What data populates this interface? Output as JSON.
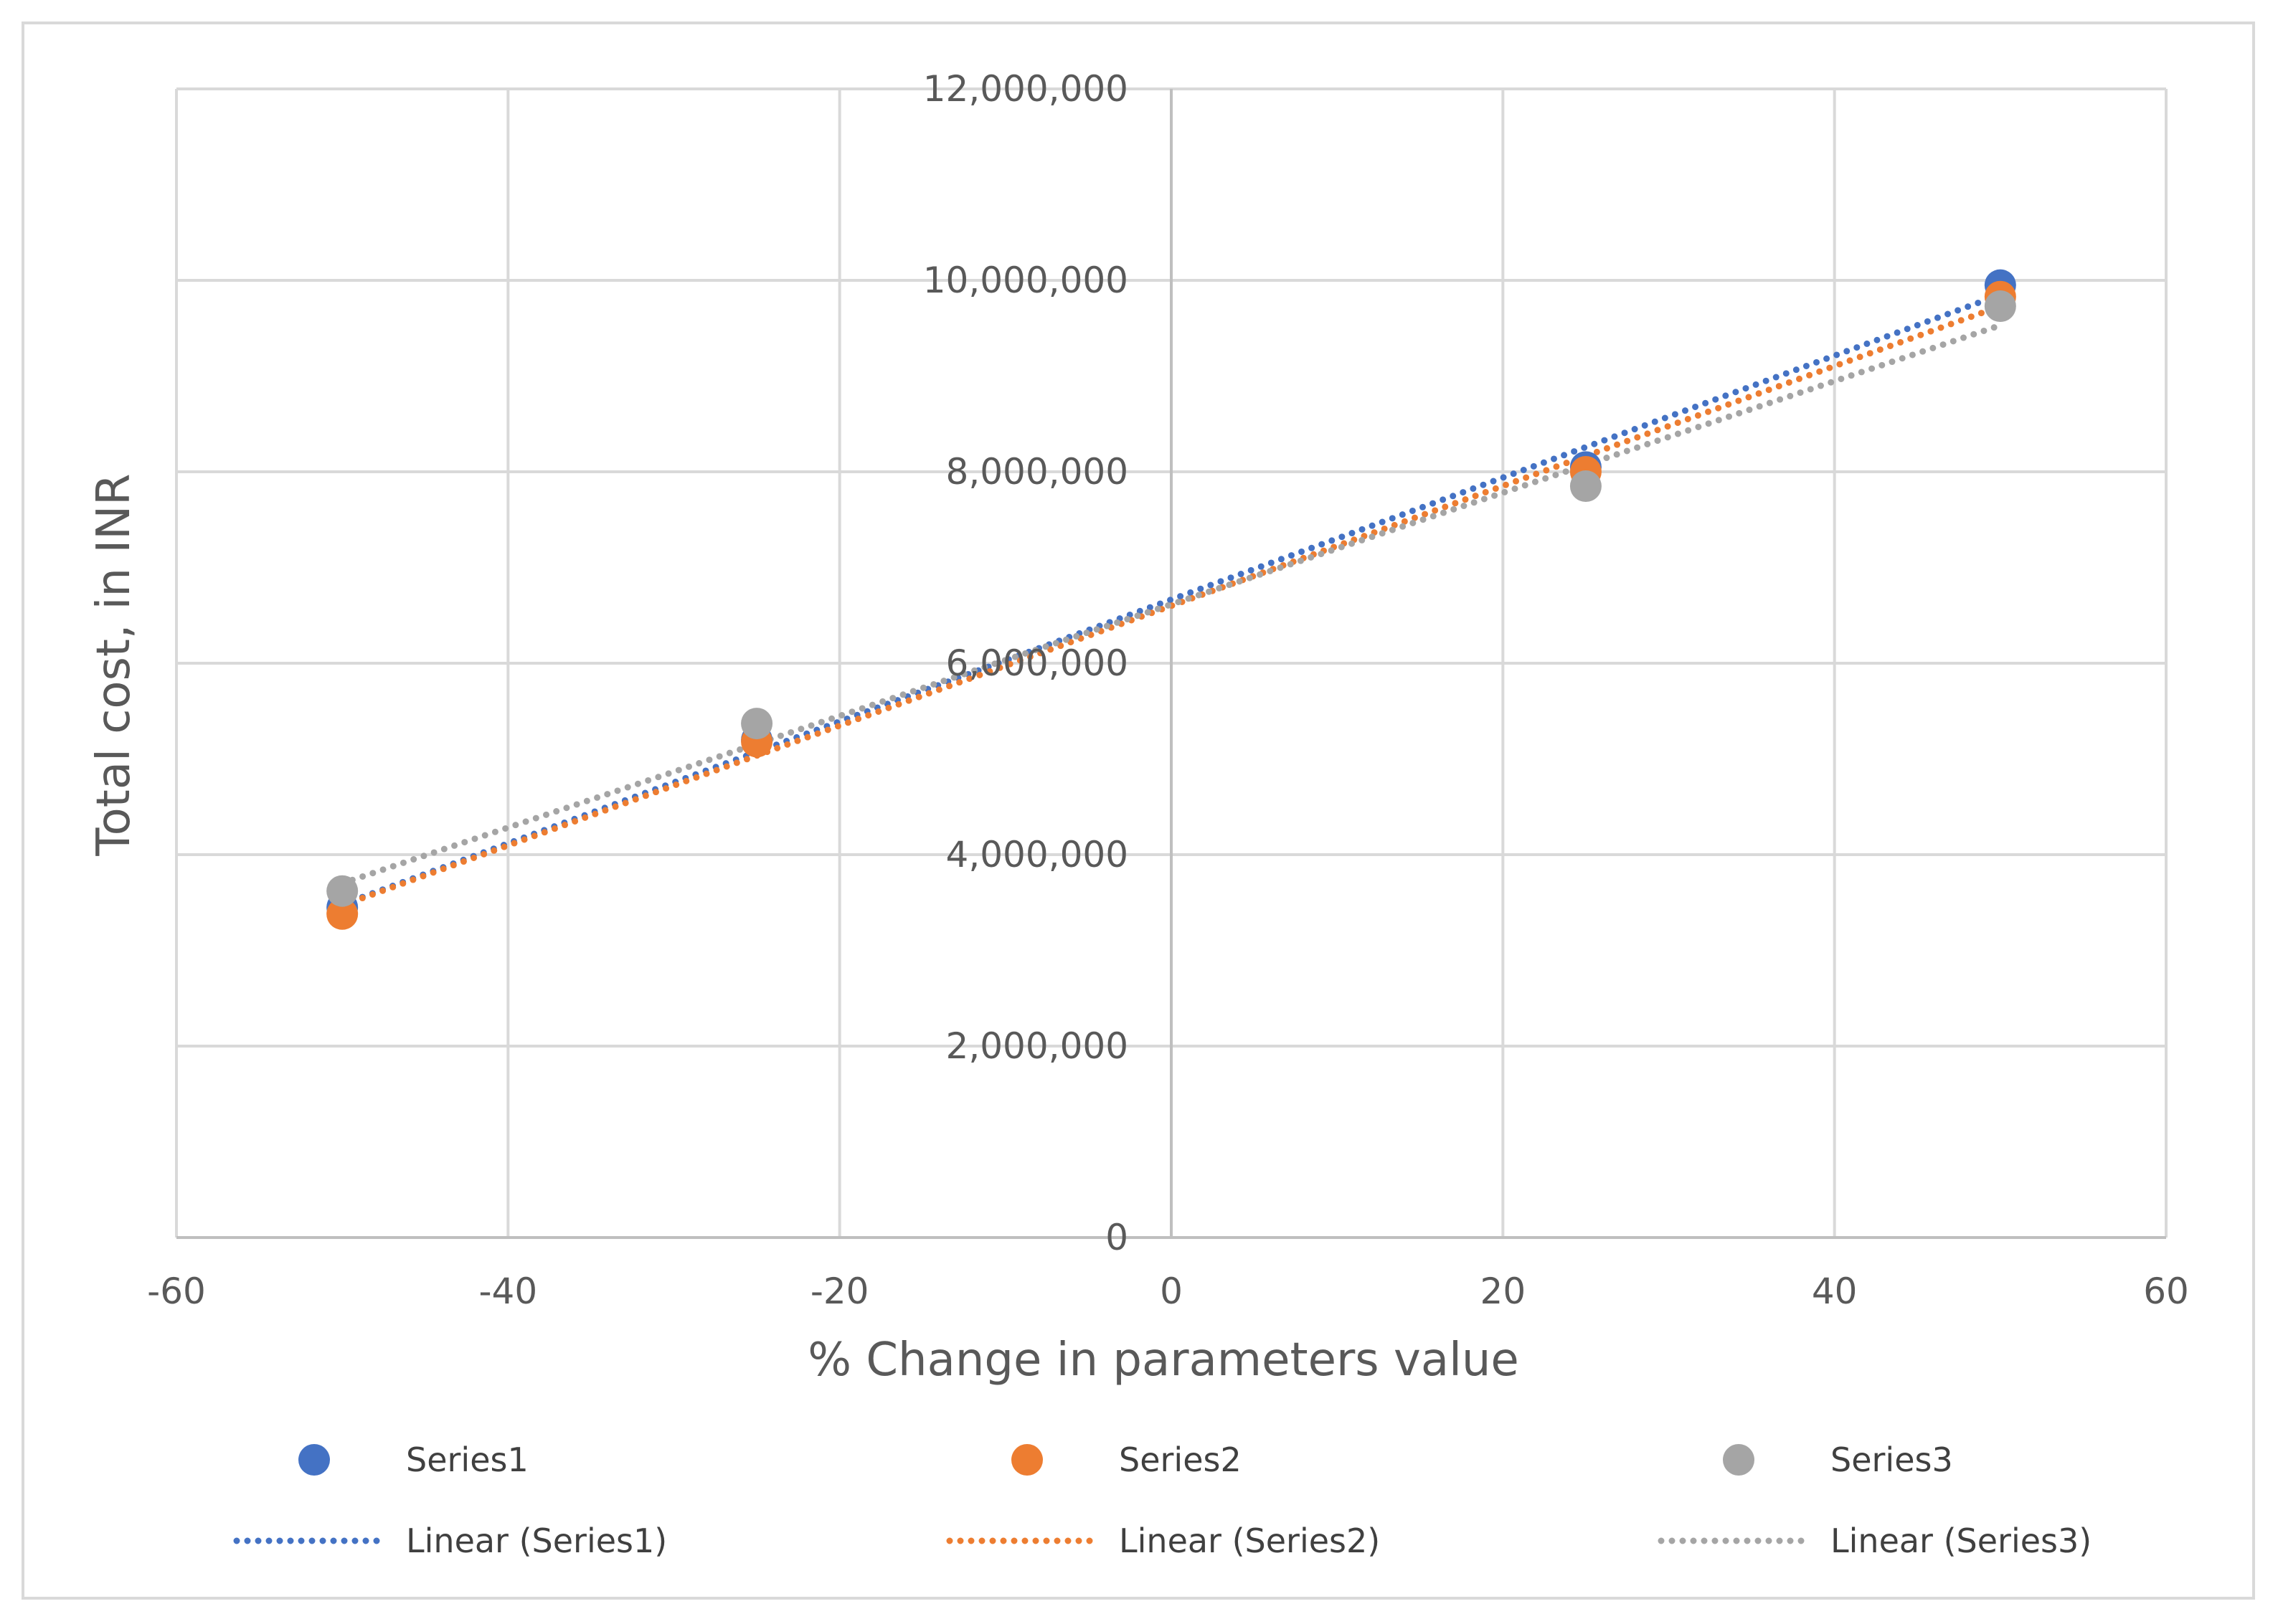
{
  "chart_data": {
    "type": "scatter",
    "xlabel": "% Change in parameters value",
    "ylabel": "Total cost, in INR",
    "xlim": [
      -60,
      60
    ],
    "ylim": [
      0,
      12000000
    ],
    "x_ticks": [
      "-60",
      "-40",
      "-20",
      "0",
      "20",
      "40",
      "60"
    ],
    "x_tick_values": [
      -60,
      -40,
      -20,
      0,
      20,
      40,
      60
    ],
    "y_ticks": [
      "0",
      "2,000,000",
      "4,000,000",
      "6,000,000",
      "8,000,000",
      "10,000,000",
      "12,000,000"
    ],
    "y_tick_values": [
      0,
      2000000,
      4000000,
      6000000,
      8000000,
      10000000,
      12000000
    ],
    "grid": true,
    "legend_position": "bottom",
    "series": [
      {
        "name": "Series1",
        "color": "#4472c4",
        "x": [
          -50,
          -25,
          25,
          50
        ],
        "y": [
          3450000,
          5200000,
          8050000,
          9950000
        ],
        "trendline": {
          "name": "Linear (Series1)",
          "y_start": 3480000,
          "y_end": 9850000
        }
      },
      {
        "name": "Series2",
        "color": "#ed7d31",
        "x": [
          -50,
          -25,
          25,
          50
        ],
        "y": [
          3380000,
          5180000,
          8000000,
          9830000
        ],
        "trendline": {
          "name": "Linear (Series2)",
          "y_start": 3470000,
          "y_end": 9730000
        }
      },
      {
        "name": "Series3",
        "color": "#a5a5a5",
        "x": [
          -50,
          -25,
          25,
          50
        ],
        "y": [
          3620000,
          5370000,
          7850000,
          9730000
        ],
        "trendline": {
          "name": "Linear (Series3)",
          "y_start": 3700000,
          "y_end": 9530000
        }
      }
    ]
  }
}
